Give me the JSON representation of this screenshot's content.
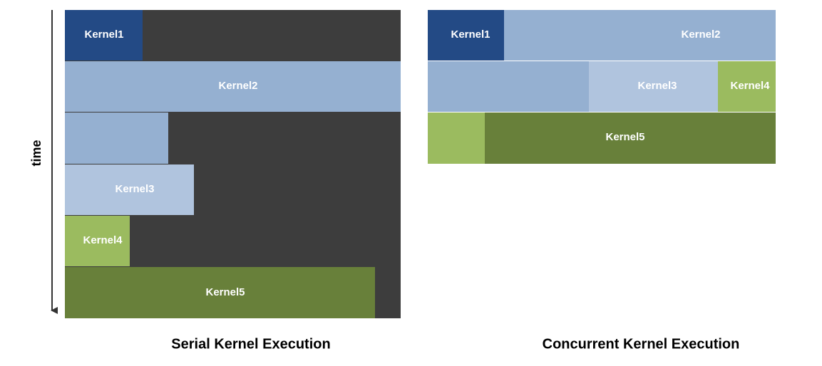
{
  "time_axis": {
    "label": "time"
  },
  "serial": {
    "caption": "Serial Kernel Execution",
    "kernels": [
      "Kernel1",
      "Kernel2",
      "Kernel3",
      "Kernel4",
      "Kernel5"
    ]
  },
  "concurrent": {
    "caption": "Concurrent Kernel Execution",
    "kernels": [
      "Kernel1",
      "Kernel2",
      "Kernel3",
      "Kernel4",
      "Kernel5"
    ]
  }
}
